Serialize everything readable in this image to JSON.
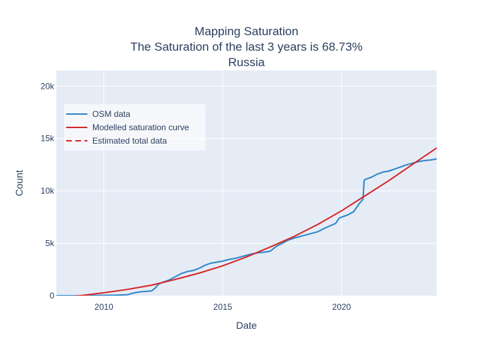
{
  "chart_data": {
    "type": "line",
    "title": [
      "Mapping Saturation",
      "The Saturation of the last 3 years is 68.73%",
      "Russia"
    ],
    "xlabel": "Date",
    "ylabel": "Count",
    "xlim": [
      2008.0,
      2024.0
    ],
    "ylim": [
      0,
      21500
    ],
    "x_ticks": [
      {
        "value": 2010,
        "label": "2010"
      },
      {
        "value": 2015,
        "label": "2015"
      },
      {
        "value": 2020,
        "label": "2020"
      }
    ],
    "y_ticks": [
      {
        "value": 0,
        "label": "0"
      },
      {
        "value": 5000,
        "label": "5k"
      },
      {
        "value": 10000,
        "label": "10k"
      },
      {
        "value": 15000,
        "label": "15k"
      },
      {
        "value": 20000,
        "label": "20k"
      }
    ],
    "grid": true,
    "legend_position": "top-left",
    "colors": {
      "plot_bg": "#e5ecf6",
      "grid": "#ffffff",
      "osm": "#1f77b4",
      "model": "#d62728",
      "estimate": "#d62728"
    },
    "series": [
      {
        "name": "OSM data",
        "color": "#2e86c8",
        "dash": "solid",
        "points": [
          [
            2008.0,
            0
          ],
          [
            2009.0,
            0
          ],
          [
            2010.0,
            30
          ],
          [
            2010.5,
            50
          ],
          [
            2011.0,
            90
          ],
          [
            2011.15,
            200
          ],
          [
            2011.35,
            300
          ],
          [
            2011.5,
            350
          ],
          [
            2011.7,
            400
          ],
          [
            2012.0,
            450
          ],
          [
            2012.15,
            700
          ],
          [
            2012.3,
            1100
          ],
          [
            2012.5,
            1300
          ],
          [
            2012.75,
            1500
          ],
          [
            2013.0,
            1800
          ],
          [
            2013.25,
            2100
          ],
          [
            2013.5,
            2300
          ],
          [
            2013.75,
            2400
          ],
          [
            2014.0,
            2600
          ],
          [
            2014.25,
            2900
          ],
          [
            2014.5,
            3100
          ],
          [
            2014.75,
            3200
          ],
          [
            2015.0,
            3300
          ],
          [
            2015.25,
            3450
          ],
          [
            2015.5,
            3550
          ],
          [
            2015.75,
            3700
          ],
          [
            2016.0,
            3850
          ],
          [
            2016.25,
            4000
          ],
          [
            2016.5,
            4100
          ],
          [
            2016.75,
            4150
          ],
          [
            2017.0,
            4250
          ],
          [
            2017.25,
            4700
          ],
          [
            2017.5,
            5000
          ],
          [
            2017.75,
            5300
          ],
          [
            2018.0,
            5500
          ],
          [
            2018.25,
            5650
          ],
          [
            2018.5,
            5800
          ],
          [
            2018.75,
            5950
          ],
          [
            2019.0,
            6100
          ],
          [
            2019.25,
            6400
          ],
          [
            2019.5,
            6650
          ],
          [
            2019.75,
            6900
          ],
          [
            2019.9,
            7400
          ],
          [
            2020.0,
            7500
          ],
          [
            2020.25,
            7700
          ],
          [
            2020.5,
            8000
          ],
          [
            2020.75,
            8800
          ],
          [
            2020.9,
            9200
          ],
          [
            2020.95,
            11000
          ],
          [
            2021.0,
            11100
          ],
          [
            2021.25,
            11300
          ],
          [
            2021.5,
            11600
          ],
          [
            2021.75,
            11800
          ],
          [
            2022.0,
            11900
          ],
          [
            2022.25,
            12100
          ],
          [
            2022.5,
            12300
          ],
          [
            2022.75,
            12500
          ],
          [
            2023.0,
            12650
          ],
          [
            2023.25,
            12800
          ],
          [
            2023.5,
            12900
          ],
          [
            2023.75,
            12950
          ],
          [
            2024.0,
            13050
          ]
        ]
      },
      {
        "name": "Modelled saturation curve",
        "color": "#d62728",
        "dash": "solid",
        "points": [
          [
            2008.0,
            -200
          ],
          [
            2009.0,
            0
          ],
          [
            2010.0,
            280
          ],
          [
            2011.0,
            600
          ],
          [
            2012.0,
            1000
          ],
          [
            2013.0,
            1550
          ],
          [
            2014.0,
            2150
          ],
          [
            2015.0,
            2850
          ],
          [
            2016.0,
            3700
          ],
          [
            2017.0,
            4650
          ],
          [
            2018.0,
            5650
          ],
          [
            2019.0,
            6800
          ],
          [
            2020.0,
            8100
          ],
          [
            2021.0,
            9550
          ],
          [
            2022.0,
            11000
          ],
          [
            2023.0,
            12550
          ],
          [
            2024.0,
            14100
          ]
        ]
      },
      {
        "name": "Estimated total data",
        "color": "#d62728",
        "dash": "dashed",
        "points": []
      }
    ]
  }
}
